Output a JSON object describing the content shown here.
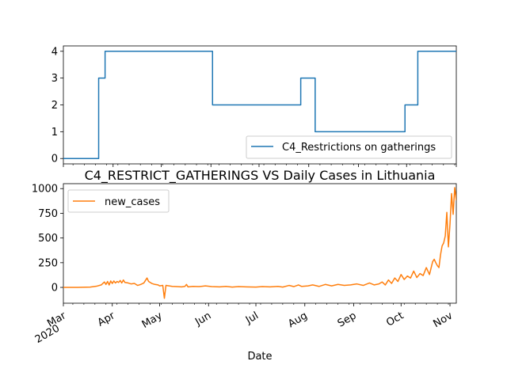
{
  "chart_data": [
    {
      "type": "line",
      "title": "",
      "xlabel": "",
      "ylabel": "",
      "ylim": [
        -0.2,
        4.2
      ],
      "yticks": [
        "0",
        "1",
        "2",
        "3",
        "4"
      ],
      "legend_position": "lower-right",
      "grid": false,
      "x_range": [
        "2020-03-01",
        "2020-11-01"
      ],
      "series": [
        {
          "name": "C4_Restrictions on gatherings",
          "color": "#1f77b4",
          "step": true,
          "points": [
            [
              "2020-03-01",
              0
            ],
            [
              "2020-03-23",
              3
            ],
            [
              "2020-03-27",
              4
            ],
            [
              "2020-06-02",
              2
            ],
            [
              "2020-07-27",
              3
            ],
            [
              "2020-08-05",
              1
            ],
            [
              "2020-09-30",
              2
            ],
            [
              "2020-10-08",
              4
            ],
            [
              "2020-11-01",
              4
            ]
          ]
        }
      ]
    },
    {
      "type": "line",
      "title": "C4_RESTRICT_GATHERINGS VS Daily Cases in Lithuania",
      "xlabel": "Date",
      "ylabel": "",
      "ylim": [
        -160,
        1050
      ],
      "yticks": [
        "0",
        "250",
        "500",
        "750",
        "1000"
      ],
      "legend_position": "top-left",
      "grid": false,
      "x_range": [
        "2020-03-01",
        "2020-11-01"
      ],
      "x_major_ticks": [
        {
          "date": "2020-03-01",
          "label": "Mar",
          "sublabel": "2020"
        },
        {
          "date": "2020-04-01",
          "label": "Apr"
        },
        {
          "date": "2020-05-01",
          "label": "May"
        },
        {
          "date": "2020-06-01",
          "label": "Jun"
        },
        {
          "date": "2020-07-01",
          "label": "Jul"
        },
        {
          "date": "2020-08-01",
          "label": "Aug"
        },
        {
          "date": "2020-09-01",
          "label": "Sep"
        },
        {
          "date": "2020-10-01",
          "label": "Oct"
        },
        {
          "date": "2020-11-01",
          "label": "Nov"
        }
      ],
      "series": [
        {
          "name": "new_cases",
          "color": "#ff7f0e",
          "points": [
            [
              "2020-03-01",
              0
            ],
            [
              "2020-03-10",
              0
            ],
            [
              "2020-03-18",
              3
            ],
            [
              "2020-03-22",
              12
            ],
            [
              "2020-03-25",
              25
            ],
            [
              "2020-03-27",
              55
            ],
            [
              "2020-03-28",
              30
            ],
            [
              "2020-03-29",
              60
            ],
            [
              "2020-03-30",
              25
            ],
            [
              "2020-03-31",
              65
            ],
            [
              "2020-04-01",
              40
            ],
            [
              "2020-04-02",
              65
            ],
            [
              "2020-04-03",
              45
            ],
            [
              "2020-04-04",
              60
            ],
            [
              "2020-04-05",
              50
            ],
            [
              "2020-04-06",
              70
            ],
            [
              "2020-04-07",
              45
            ],
            [
              "2020-04-08",
              75
            ],
            [
              "2020-04-09",
              50
            ],
            [
              "2020-04-11",
              45
            ],
            [
              "2020-04-13",
              35
            ],
            [
              "2020-04-15",
              40
            ],
            [
              "2020-04-17",
              20
            ],
            [
              "2020-04-19",
              30
            ],
            [
              "2020-04-21",
              45
            ],
            [
              "2020-04-23",
              95
            ],
            [
              "2020-04-24",
              60
            ],
            [
              "2020-04-26",
              40
            ],
            [
              "2020-04-28",
              30
            ],
            [
              "2020-04-30",
              25
            ],
            [
              "2020-05-01",
              15
            ],
            [
              "2020-05-03",
              20
            ],
            [
              "2020-05-04",
              -110
            ],
            [
              "2020-05-05",
              20
            ],
            [
              "2020-05-07",
              15
            ],
            [
              "2020-05-09",
              10
            ],
            [
              "2020-05-12",
              8
            ],
            [
              "2020-05-15",
              5
            ],
            [
              "2020-05-17",
              10
            ],
            [
              "2020-05-18",
              30
            ],
            [
              "2020-05-19",
              5
            ],
            [
              "2020-05-22",
              10
            ],
            [
              "2020-05-26",
              8
            ],
            [
              "2020-05-30",
              15
            ],
            [
              "2020-06-03",
              8
            ],
            [
              "2020-06-08",
              5
            ],
            [
              "2020-06-12",
              10
            ],
            [
              "2020-06-16",
              3
            ],
            [
              "2020-06-20",
              8
            ],
            [
              "2020-06-25",
              5
            ],
            [
              "2020-07-01",
              3
            ],
            [
              "2020-07-05",
              8
            ],
            [
              "2020-07-10",
              5
            ],
            [
              "2020-07-15",
              10
            ],
            [
              "2020-07-18",
              3
            ],
            [
              "2020-07-22",
              20
            ],
            [
              "2020-07-25",
              8
            ],
            [
              "2020-07-28",
              25
            ],
            [
              "2020-07-30",
              10
            ],
            [
              "2020-08-03",
              15
            ],
            [
              "2020-08-06",
              25
            ],
            [
              "2020-08-10",
              10
            ],
            [
              "2020-08-14",
              30
            ],
            [
              "2020-08-18",
              15
            ],
            [
              "2020-08-22",
              30
            ],
            [
              "2020-08-26",
              20
            ],
            [
              "2020-08-30",
              25
            ],
            [
              "2020-09-03",
              35
            ],
            [
              "2020-09-07",
              20
            ],
            [
              "2020-09-11",
              45
            ],
            [
              "2020-09-14",
              25
            ],
            [
              "2020-09-17",
              35
            ],
            [
              "2020-09-19",
              55
            ],
            [
              "2020-09-21",
              25
            ],
            [
              "2020-09-23",
              75
            ],
            [
              "2020-09-25",
              40
            ],
            [
              "2020-09-27",
              95
            ],
            [
              "2020-09-29",
              60
            ],
            [
              "2020-10-01",
              130
            ],
            [
              "2020-10-03",
              80
            ],
            [
              "2020-10-05",
              115
            ],
            [
              "2020-10-07",
              95
            ],
            [
              "2020-10-09",
              165
            ],
            [
              "2020-10-11",
              100
            ],
            [
              "2020-10-13",
              140
            ],
            [
              "2020-10-15",
              120
            ],
            [
              "2020-10-17",
              200
            ],
            [
              "2020-10-19",
              130
            ],
            [
              "2020-10-21",
              260
            ],
            [
              "2020-10-22",
              285
            ],
            [
              "2020-10-23",
              250
            ],
            [
              "2020-10-24",
              220
            ],
            [
              "2020-10-25",
              200
            ],
            [
              "2020-10-26",
              330
            ],
            [
              "2020-10-27",
              420
            ],
            [
              "2020-10-28",
              450
            ],
            [
              "2020-10-29",
              520
            ],
            [
              "2020-10-30",
              760
            ],
            [
              "2020-10-31",
              410
            ],
            [
              "2020-11-01",
              640
            ],
            [
              "2020-11-02",
              950
            ],
            [
              "2020-11-03",
              740
            ],
            [
              "2020-11-04",
              1010
            ],
            [
              "2020-11-05",
              880
            ]
          ]
        }
      ]
    }
  ]
}
